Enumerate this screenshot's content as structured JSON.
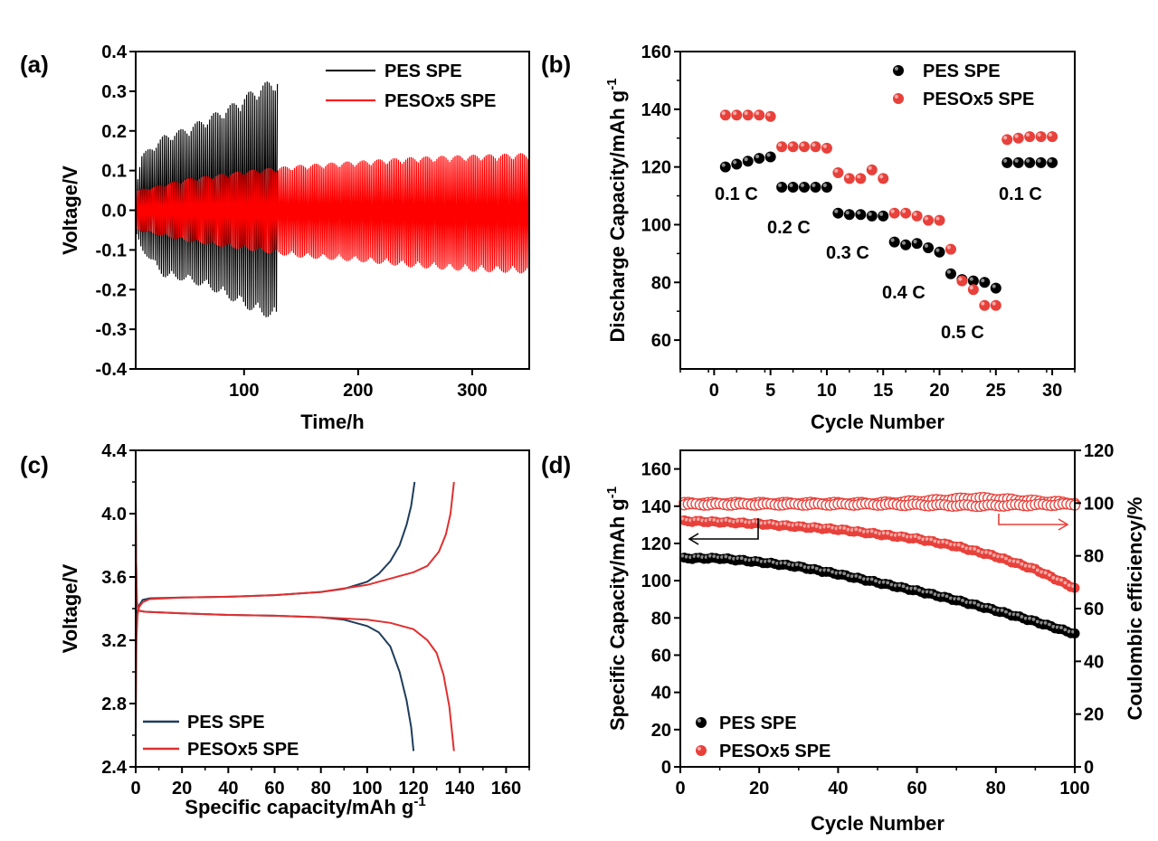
{
  "chart_data": [
    {
      "panel": "(a)",
      "type": "line",
      "xlabel": "Time/h",
      "ylabel": "Voltage/V",
      "xlim": [
        5,
        350
      ],
      "ylim": [
        -0.4,
        0.4
      ],
      "xticks": [
        100,
        200,
        300
      ],
      "yticks": [
        -0.4,
        -0.3,
        -0.2,
        -0.1,
        0.0,
        0.1,
        0.2,
        0.3,
        0.4
      ],
      "legend_position": "top-right",
      "series": [
        {
          "name": "PES SPE",
          "color": "#000000",
          "x": [
            5,
            10,
            30,
            50,
            70,
            90,
            110,
            130
          ],
          "upper": [
            0.06,
            0.14,
            0.19,
            0.21,
            0.24,
            0.27,
            0.31,
            0.34
          ],
          "lower": [
            -0.06,
            -0.1,
            -0.17,
            -0.18,
            -0.2,
            -0.23,
            -0.26,
            -0.28
          ]
        },
        {
          "name": "PESOx5 SPE",
          "color": "#ff0000",
          "x": [
            5,
            50,
            100,
            150,
            200,
            250,
            300,
            350
          ],
          "upper": [
            0.05,
            0.08,
            0.1,
            0.115,
            0.125,
            0.135,
            0.14,
            0.145
          ],
          "lower": [
            -0.05,
            -0.08,
            -0.1,
            -0.12,
            -0.13,
            -0.145,
            -0.155,
            -0.16
          ]
        }
      ]
    },
    {
      "panel": "(b)",
      "type": "scatter",
      "xlabel": "Cycle Number",
      "ylabel": "Discharge Capacity/mAh g",
      "ylabel_sup": "-1",
      "xlim": [
        -3,
        32
      ],
      "ylim": [
        50,
        160
      ],
      "xticks": [
        0,
        5,
        10,
        15,
        20,
        25,
        30
      ],
      "yticks": [
        60,
        80,
        100,
        120,
        140,
        160
      ],
      "legend_position": "top-right",
      "series": [
        {
          "name": "PES SPE",
          "color": "#000000",
          "x": [
            1,
            2,
            3,
            4,
            5,
            6,
            7,
            8,
            9,
            10,
            11,
            12,
            13,
            14,
            15,
            16,
            17,
            18,
            19,
            20,
            21,
            22,
            23,
            24,
            25,
            26,
            27,
            28,
            29,
            30
          ],
          "values": [
            120,
            121,
            122,
            123,
            123.5,
            113,
            113,
            113,
            113,
            113,
            104,
            103.5,
            103.5,
            103,
            103,
            94,
            93,
            93.5,
            92,
            90.5,
            83,
            81,
            80.5,
            80,
            78,
            121.5,
            121.5,
            121.5,
            121.5,
            121.5
          ]
        },
        {
          "name": "PESOx5 SPE",
          "color": "#e8403a",
          "x": [
            1,
            2,
            3,
            4,
            5,
            6,
            7,
            8,
            9,
            10,
            11,
            12,
            13,
            14,
            15,
            16,
            17,
            18,
            19,
            20,
            21,
            22,
            23,
            24,
            25,
            26,
            27,
            28,
            29,
            30
          ],
          "values": [
            138,
            138,
            138,
            138,
            137.5,
            127,
            127,
            127,
            127,
            126.5,
            118,
            116,
            116,
            119,
            116,
            104,
            104,
            103,
            101.5,
            101.5,
            91.5,
            80.5,
            77.5,
            72,
            72,
            129.5,
            130,
            130.5,
            130.5,
            130.5
          ]
        }
      ],
      "annotations": [
        "0.1 C",
        "0.2 C",
        "0.3 C",
        "0.4 C",
        "0.5 C",
        "0.1 C"
      ]
    },
    {
      "panel": "(c)",
      "type": "line",
      "xlabel": "Specific capacity/mAh g",
      "xlabel_sup": "-1",
      "ylabel": "Voltage/V",
      "xlim": [
        0,
        170
      ],
      "ylim": [
        2.4,
        4.4
      ],
      "xticks": [
        0,
        20,
        40,
        60,
        80,
        100,
        120,
        140,
        160
      ],
      "yticks": [
        2.4,
        2.8,
        3.2,
        3.6,
        4.0,
        4.4
      ],
      "legend_position": "bottom-left",
      "series": [
        {
          "name": "PES SPE",
          "color": "#1e3d5c",
          "charge": {
            "x": [
              0,
              0.3,
              0.8,
              1.5,
              3,
              6,
              20,
              40,
              60,
              80,
              90,
              100,
              105,
              110,
              114,
              117,
              119,
              120.5
            ],
            "y": [
              2.95,
              3.25,
              3.39,
              3.42,
              3.455,
              3.465,
              3.47,
              3.475,
              3.485,
              3.505,
              3.525,
              3.57,
              3.62,
              3.7,
              3.8,
              3.93,
              4.05,
              4.2
            ]
          },
          "discharge": {
            "x": [
              0,
              0.2,
              0.5,
              1,
              2,
              4,
              20,
              40,
              60,
              80,
              90,
              100,
              105,
              110,
              114,
              117,
              119,
              120
            ],
            "y": [
              4.1,
              3.7,
              3.45,
              3.39,
              3.385,
              3.38,
              3.37,
              3.36,
              3.355,
              3.345,
              3.33,
              3.29,
              3.25,
              3.16,
              3.0,
              2.82,
              2.65,
              2.5
            ]
          }
        },
        {
          "name": "PESOx5 SPE",
          "color": "#e03030",
          "charge": {
            "x": [
              0,
              0.3,
              0.8,
              1.5,
              3,
              6,
              20,
              40,
              60,
              80,
              100,
              110,
              120,
              126,
              131,
              134,
              136,
              137.5
            ],
            "y": [
              2.6,
              3.2,
              3.36,
              3.41,
              3.44,
              3.46,
              3.47,
              3.475,
              3.485,
              3.505,
              3.55,
              3.59,
              3.63,
              3.67,
              3.76,
              3.87,
              4.0,
              4.2
            ]
          },
          "discharge": {
            "x": [
              0,
              0.2,
              0.5,
              1,
              2,
              4,
              20,
              40,
              60,
              80,
              100,
              110,
              120,
              126,
              130,
              133,
              135.5,
              137.5
            ],
            "y": [
              4.1,
              3.7,
              3.45,
              3.39,
              3.385,
              3.38,
              3.37,
              3.36,
              3.355,
              3.345,
              3.33,
              3.31,
              3.27,
              3.2,
              3.12,
              2.98,
              2.78,
              2.5
            ]
          }
        }
      ]
    },
    {
      "panel": "(d)",
      "type": "scatter",
      "xlabel": "Cycle Number",
      "ylabel": "Specific Capacity/mAh g",
      "ylabel_sup": "-1",
      "y2label": "Coulombic efficiency/%",
      "xlim": [
        0,
        100
      ],
      "ylim": [
        0,
        170
      ],
      "y2lim": [
        0,
        120
      ],
      "xticks": [
        0,
        20,
        40,
        60,
        80,
        100
      ],
      "yticks": [
        0,
        20,
        40,
        60,
        80,
        100,
        120,
        140,
        160
      ],
      "y2ticks": [
        0,
        20,
        40,
        60,
        80,
        100,
        120
      ],
      "legend_position": "bottom-left",
      "series": [
        {
          "name": "PES SPE",
          "color": "#000000",
          "axis": "left",
          "x": [
            1,
            10,
            20,
            30,
            40,
            50,
            60,
            70,
            80,
            90,
            100
          ],
          "values": [
            112,
            112,
            110,
            107.5,
            103.5,
            99,
            94.5,
            89.5,
            84,
            78,
            71.5
          ]
        },
        {
          "name": "PESOx5 SPE",
          "color": "#e8403a",
          "axis": "left",
          "x": [
            1,
            10,
            20,
            30,
            40,
            50,
            60,
            70,
            80,
            90,
            100
          ],
          "values": [
            132,
            131.5,
            130.5,
            129,
            127.5,
            125,
            122.5,
            118.5,
            113,
            106,
            96
          ]
        },
        {
          "color": "#e8403a",
          "axis": "right",
          "x": [
            1,
            25,
            50,
            64,
            75,
            100
          ],
          "values": [
            100,
            100,
            100,
            101,
            102,
            100
          ]
        },
        {
          "color": "#e8403a",
          "axis": "right",
          "x": [
            1,
            25,
            50,
            75,
            100
          ],
          "values": [
            99.5,
            99.5,
            99.5,
            99,
            99.5
          ]
        }
      ]
    }
  ]
}
